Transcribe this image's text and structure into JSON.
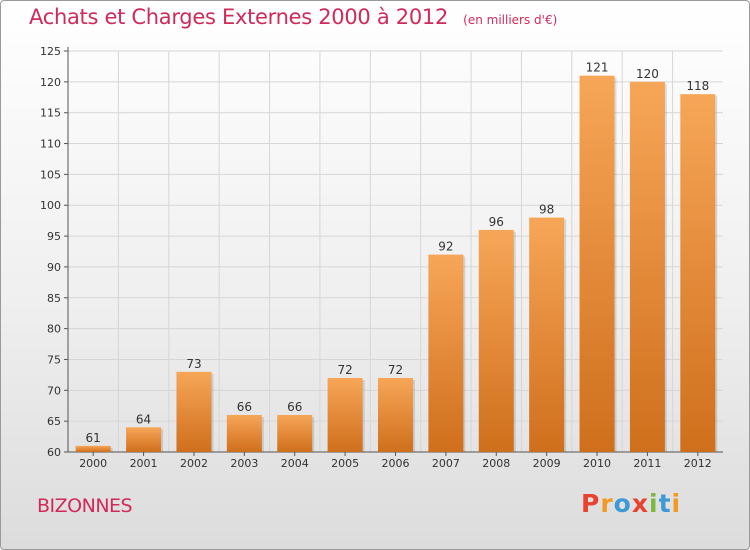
{
  "header": {
    "title": "Achats et Charges Externes 2000 à 2012",
    "subtitle": "(en milliers d'€)"
  },
  "footer": {
    "commune": "BIZONNES",
    "brand": "Proxiti",
    "brand_colors": [
      "#e8432e",
      "#f29a1f",
      "#3d9ad6",
      "#e8432e",
      "#7ab93b",
      "#3d9ad6",
      "#f29a1f"
    ]
  },
  "chart_data": {
    "type": "bar",
    "title": "Achats et Charges Externes 2000 à 2012",
    "subtitle": "(en milliers d'€)",
    "categories": [
      "2000",
      "2001",
      "2002",
      "2003",
      "2004",
      "2005",
      "2006",
      "2007",
      "2008",
      "2009",
      "2010",
      "2011",
      "2012"
    ],
    "values": [
      61,
      64,
      73,
      66,
      66,
      72,
      72,
      92,
      96,
      98,
      121,
      120,
      118
    ],
    "ylim": [
      60,
      125
    ],
    "yticks": [
      60,
      65,
      70,
      75,
      80,
      85,
      90,
      95,
      100,
      105,
      110,
      115,
      120,
      125
    ],
    "xlabel": "",
    "ylabel": "",
    "grid": true,
    "bar_color_top": "#f7a658",
    "bar_color_bottom": "#cf6f1c",
    "grid_color": "#d6d6d6"
  }
}
